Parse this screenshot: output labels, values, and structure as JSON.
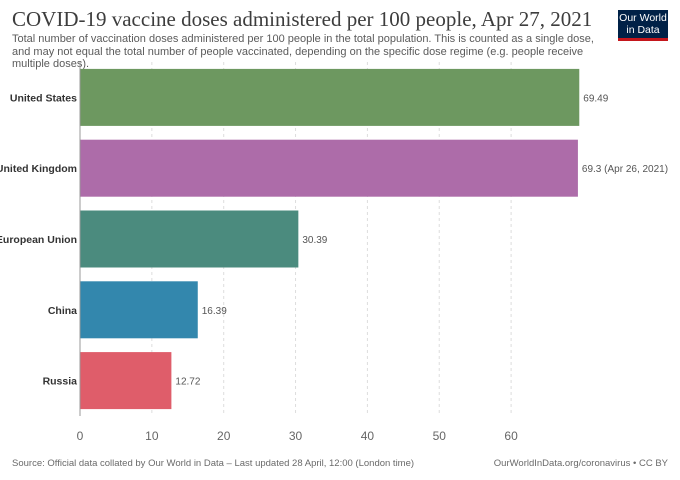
{
  "chart_data": {
    "type": "bar",
    "orientation": "horizontal",
    "title": "COVID-19 vaccine doses administered per 100 people, Apr 27, 2021",
    "subtitle": "Total number of vaccination doses administered per 100 people in the total population. This is counted as a single dose, and may not equal the total number of people vaccinated, depending on the specific dose regime (e.g. people receive multiple doses).",
    "categories": [
      "United States",
      "United Kingdom",
      "European Union",
      "China",
      "Russia"
    ],
    "values": [
      69.49,
      69.3,
      30.39,
      16.39,
      12.72
    ],
    "value_labels": [
      "69.49",
      "69.3 (Apr 26, 2021)",
      "30.39",
      "16.39",
      "12.72"
    ],
    "colors": [
      "#6d9860",
      "#ad6ca9",
      "#4b8b7e",
      "#3387ad",
      "#df5d6a"
    ],
    "x_ticks": [
      "0",
      "10",
      "20",
      "30",
      "40",
      "50",
      "60"
    ],
    "xlim": [
      0,
      70
    ],
    "grid": true,
    "source": "Source: Official data collated by Our World in Data – Last updated 28 April, 12:00 (London time)",
    "credit": "OurWorldInData.org/coronavirus • CC BY"
  },
  "logo": {
    "line1": "Our World",
    "line2": "in Data"
  }
}
